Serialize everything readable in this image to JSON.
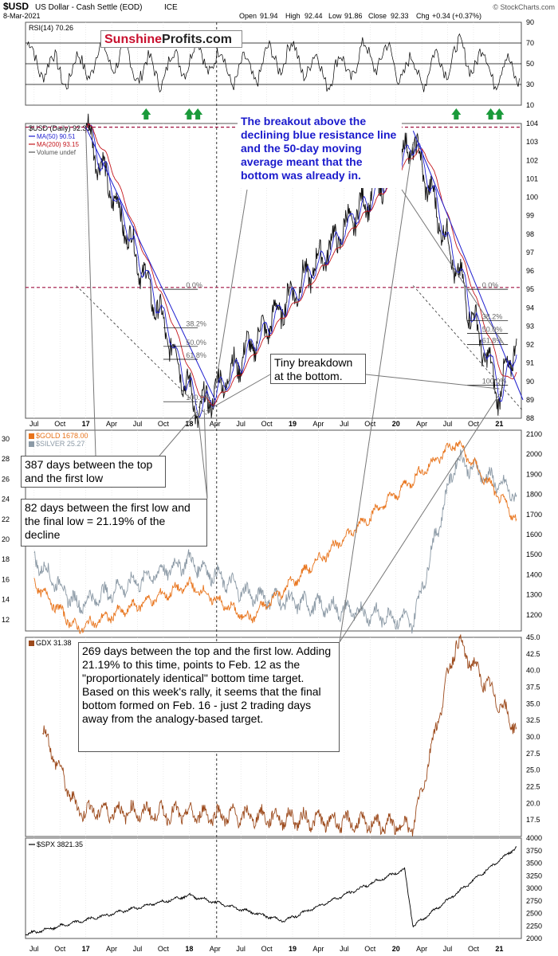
{
  "header": {
    "symbol": "$USD",
    "name": "US Dollar - Cash Settle (EOD)",
    "exchange": "ICE",
    "date": "8-Mar-2021",
    "open_label": "Open",
    "open": "91.94",
    "high_label": "High",
    "high": "92.44",
    "low_label": "Low",
    "low": "91.86",
    "close_label": "Close",
    "close": "92.33",
    "chg_label": "Chg",
    "chg": "+0.34 (+0.37%)",
    "credit": "© StockCharts.com"
  },
  "brand": {
    "part1": "Sunshine",
    "part2": "Profits.com"
  },
  "annotations": {
    "breakout": "The breakout above the declining blue resistance line and the 50-day moving average meant that the bottom was already in.",
    "tiny": "Tiny breakdown at the bottom.",
    "days387": "387 days between the top and the first low",
    "days82": "82 days between the first low and the final low = 21.19% of the decline",
    "days269": "269 days between the top and the first low. Adding 21.19% to this time, points to Feb. 12 as the \"proportionately identical\" bottom time target. Based on this week's rally, it seems that the final bottom formed on Feb. 16 - just 2 trading days away from the analogy-based target."
  },
  "chart_data": [
    {
      "type": "line",
      "title": "RSI(14) 70.26",
      "ylim": [
        10,
        90
      ],
      "y_ticks": [
        "90",
        "70",
        "50",
        "30",
        "10"
      ],
      "reference_lines": [
        70,
        50,
        30
      ],
      "markers": "green-up-arrows",
      "marker_dates": [
        "Aug 2017",
        "Jan 2018",
        "Feb 2018",
        "Aug 2020",
        "Dec 2020",
        "Jan 2021"
      ]
    },
    {
      "type": "line",
      "title": "$USD (Daily) 92.33",
      "ylim": [
        88,
        104
      ],
      "y_ticks": [
        "104",
        "103",
        "102",
        "101",
        "100",
        "99",
        "98",
        "97",
        "96",
        "95",
        "94",
        "93",
        "92",
        "91",
        "90",
        "89",
        "88"
      ],
      "x_ticks": [
        "Jul",
        "Oct",
        "17",
        "Apr",
        "Jul",
        "Oct",
        "18",
        "Apr",
        "Jul",
        "Oct",
        "19",
        "Apr",
        "Jul",
        "Oct",
        "20",
        "Apr",
        "Jul",
        "Oct",
        "21"
      ],
      "legend": [
        "MA(50) 90.51",
        "MA(200) 93.15",
        "Volume undef"
      ],
      "series_colors": {
        "price": "#000000",
        "ma50": "#1f1fcf",
        "ma200": "#c4161c"
      },
      "horizontal_levels": [
        103.8,
        95.1
      ],
      "fib_labels_2017": [
        "0.0%",
        "38.2%",
        "50.0%",
        "61.8%",
        "100.0%"
      ],
      "fib_labels_2020": [
        "0.0%",
        "38.2%",
        "50.0%",
        "61.8%",
        "100.0%"
      ],
      "key_points": [
        {
          "x": "Jan 2017",
          "y": 103.8
        },
        {
          "x": "Feb 2018",
          "y": 88.3
        },
        {
          "x": "Mar 2020",
          "y": 103.0
        },
        {
          "x": "Jan 2021",
          "y": 89.2
        },
        {
          "x": "Mar 2021",
          "y": 92.33
        }
      ]
    },
    {
      "type": "line",
      "title": "$GOLD 1678.00",
      "series": [
        {
          "name": "$GOLD 1678.00",
          "color": "#e8741c"
        },
        {
          "name": "$SILVER 25.27",
          "color": "#8c9aa6"
        }
      ],
      "left_ticks": [
        "30",
        "28",
        "26",
        "24",
        "22",
        "20",
        "18",
        "16",
        "14",
        "12"
      ],
      "right_ticks": [
        "2100",
        "2000",
        "1900",
        "1800",
        "1700",
        "1600",
        "1500",
        "1400",
        "1300",
        "1200"
      ],
      "ylim_gold": [
        1120,
        2120
      ],
      "key_points_gold": [
        {
          "x": "Jul 2016",
          "y": 1360
        },
        {
          "x": "Dec 2016",
          "y": 1130
        },
        {
          "x": "Jan 2018",
          "y": 1350
        },
        {
          "x": "Aug 2018",
          "y": 1180
        },
        {
          "x": "Aug 2020",
          "y": 2060
        },
        {
          "x": "Mar 2021",
          "y": 1678
        }
      ]
    },
    {
      "type": "line",
      "title": "GDX 31.38",
      "ylim": [
        15,
        45
      ],
      "y_ticks": [
        "45.0",
        "42.5",
        "40.0",
        "37.5",
        "35.0",
        "32.5",
        "30.0",
        "27.5",
        "25.0",
        "22.5",
        "20.0",
        "17.5"
      ],
      "key_points": [
        {
          "x": "Aug 2016",
          "y": 31.0
        },
        {
          "x": "Dec 2016",
          "y": 19.0
        },
        {
          "x": "Sep 2018",
          "y": 18.0
        },
        {
          "x": "Mar 2020",
          "y": 16.5
        },
        {
          "x": "Aug 2020",
          "y": 44.5
        },
        {
          "x": "Mar 2021",
          "y": 31.38
        }
      ]
    },
    {
      "type": "line",
      "title": "$SPX 3821.35",
      "ylim": [
        2000,
        4000
      ],
      "y_ticks": [
        "4000",
        "3750",
        "3500",
        "3250",
        "3000",
        "2750",
        "2500",
        "2250",
        "2000"
      ],
      "x_ticks": [
        "Jul",
        "Oct",
        "17",
        "Apr",
        "Jul",
        "Oct",
        "18",
        "Apr",
        "Jul",
        "Oct",
        "19",
        "Apr",
        "Jul",
        "Oct",
        "20",
        "Apr",
        "Jul",
        "Oct",
        "21"
      ],
      "key_points": [
        {
          "x": "Jun 2016",
          "y": 2080
        },
        {
          "x": "Jan 2018",
          "y": 2860
        },
        {
          "x": "Dec 2018",
          "y": 2350
        },
        {
          "x": "Feb 2020",
          "y": 3380
        },
        {
          "x": "Mar 2020",
          "y": 2240
        },
        {
          "x": "Mar 2021",
          "y": 3821.35
        }
      ]
    }
  ]
}
